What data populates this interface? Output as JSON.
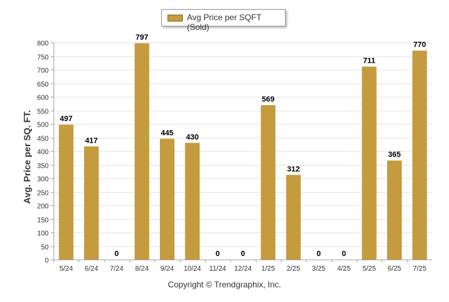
{
  "legend": {
    "label": "Avg Price per SQFT (Sold)"
  },
  "footer": {
    "copyright": "Copyright © Trendgraphix, Inc."
  },
  "colors": {
    "bar": "#c49b3e",
    "grid": "#e6e6e6",
    "axis": "#aaaaaa",
    "text": "#333333"
  },
  "chart_data": {
    "type": "bar",
    "ylabel": "Avg. Price per SQ. FT.",
    "xlabel": "",
    "ylim": [
      0,
      800
    ],
    "yticks": [
      0,
      50,
      100,
      150,
      200,
      250,
      300,
      350,
      400,
      450,
      500,
      550,
      600,
      650,
      700,
      750,
      800
    ],
    "grid": true,
    "legend_position": "top-center",
    "categories": [
      "5/24",
      "6/24",
      "7/24",
      "8/24",
      "9/24",
      "10/24",
      "11/24",
      "12/24",
      "1/25",
      "2/25",
      "3/25",
      "4/25",
      "5/25",
      "6/25",
      "7/25"
    ],
    "series": [
      {
        "name": "Avg Price per SQFT (Sold)",
        "values": [
          497,
          417,
          0,
          797,
          445,
          430,
          0,
          0,
          569,
          312,
          0,
          0,
          711,
          365,
          770
        ]
      }
    ]
  }
}
